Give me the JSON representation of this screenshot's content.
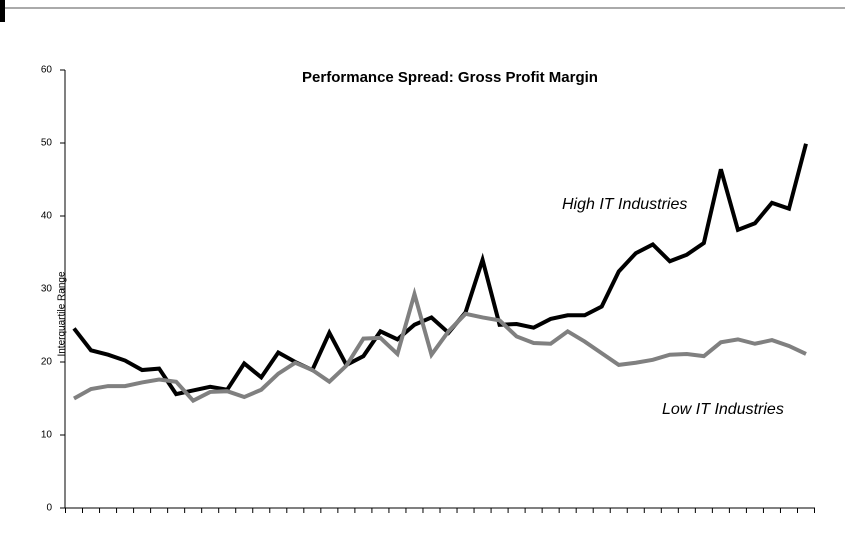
{
  "chart_data": {
    "type": "line",
    "title": "Performance Spread: Gross Profit Margin",
    "y_label": "Interquartile Range",
    "categories": [
      null,
      null,
      null,
      null,
      null,
      null,
      null,
      null,
      null,
      null,
      null,
      null,
      null,
      null,
      null,
      null,
      null,
      null,
      null,
      null,
      null,
      null,
      null,
      null,
      null,
      null,
      null,
      null,
      null,
      null,
      null,
      null,
      null,
      null,
      null,
      null,
      null,
      null,
      null,
      null,
      null,
      null,
      null,
      null
    ],
    "series": [
      {
        "name": "High IT Industries",
        "color": "#000000",
        "values": [
          24.6,
          21.6,
          21,
          20.2,
          18.9,
          19.1,
          15.6,
          16.1,
          16.6,
          16.2,
          19.8,
          17.9,
          21.3,
          20,
          18.9,
          24,
          19.6,
          20.8,
          24.2,
          23.1,
          25.1,
          26.1,
          24,
          26.8,
          34,
          25.1,
          25.2,
          24.7,
          25.9,
          26.4,
          26.4,
          27.6,
          32.4,
          34.9,
          36.1,
          33.8,
          34.7,
          36.3,
          46.4,
          38.1,
          39,
          41.8,
          41,
          49.9
        ]
      },
      {
        "name": "Low IT Industries",
        "color": "#808080",
        "values": [
          15,
          16.3,
          16.7,
          16.7,
          17.2,
          17.6,
          17.3,
          14.7,
          15.9,
          16,
          15.2,
          16.2,
          18.4,
          19.9,
          18.9,
          17.3,
          19.5,
          23.2,
          23.3,
          21.1,
          29.3,
          21,
          24.2,
          26.6,
          26.1,
          25.7,
          23.5,
          22.6,
          22.5,
          24.2,
          22.8,
          21.2,
          19.6,
          19.9,
          20.3,
          21,
          21.1,
          20.8,
          22.7,
          23.1,
          22.5,
          23,
          22.2,
          21.1
        ]
      }
    ],
    "ylim": [
      0,
      60
    ],
    "yticks": [
      0,
      10,
      20,
      30,
      40,
      50,
      60
    ],
    "grid": false
  }
}
